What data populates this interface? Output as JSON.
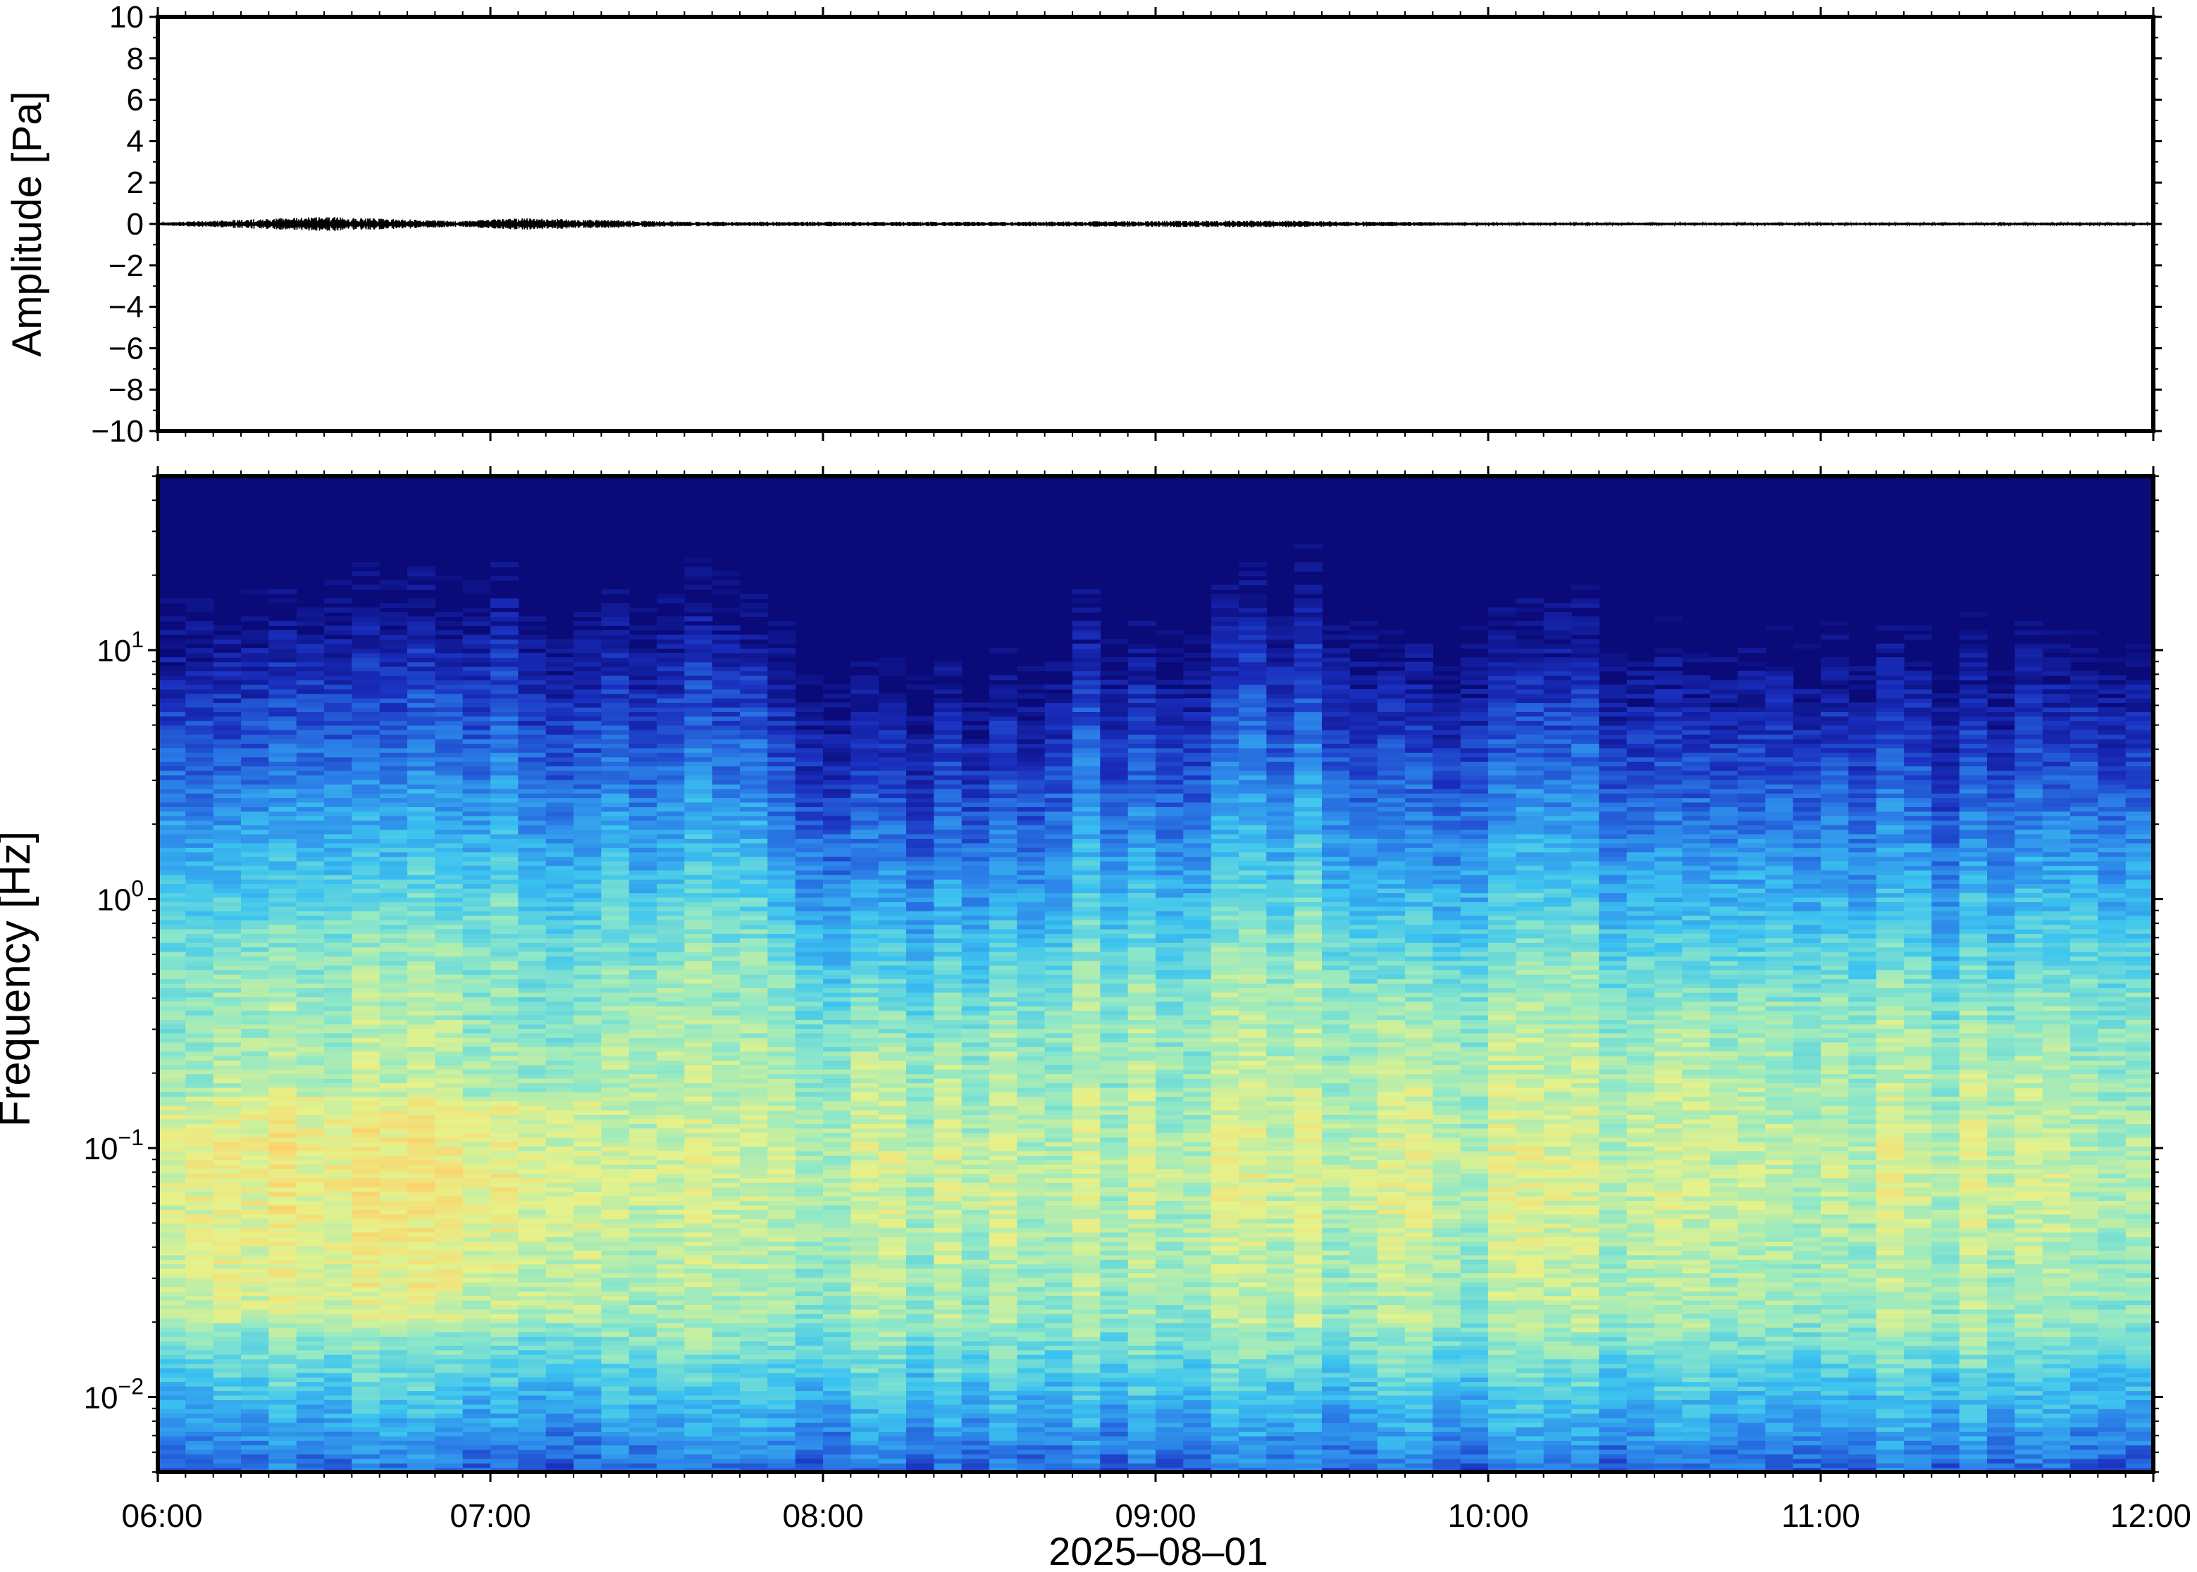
{
  "chart_data": [
    {
      "type": "line",
      "ylabel": "Amplitude [Pa]",
      "ylim": [
        -10,
        10
      ],
      "y_ticks": [
        "10",
        "8",
        "6",
        "4",
        "2",
        "0",
        "−2",
        "−4",
        "−6",
        "−8",
        "−10"
      ],
      "y_tick_values": [
        10,
        8,
        6,
        4,
        2,
        0,
        -2,
        -4,
        -6,
        -8,
        -10
      ],
      "x_range": [
        "06:00",
        "12:00"
      ],
      "series": [
        {
          "hours": [
            6.0,
            6.5,
            6.9,
            7.1,
            7.6,
            8.6,
            9.3,
            10.0,
            11.0,
            12.0
          ],
          "values": [
            0.05,
            0.25,
            0.1,
            0.2,
            0.08,
            0.08,
            0.12,
            0.05,
            0.05,
            0.05
          ]
        }
      ],
      "color": "#000000"
    },
    {
      "type": "heatmap",
      "ylabel": "Frequency [Hz]",
      "yscale": "log",
      "ylim": [
        0.005,
        50
      ],
      "y_tick_base": [
        "10",
        "10",
        "10",
        "10"
      ],
      "y_tick_exp": [
        "1",
        "0",
        "−1",
        "−2"
      ],
      "y_tick_values": [
        10,
        1,
        0.1,
        0.01
      ],
      "x_ticks": [
        "06:00",
        "07:00",
        "08:00",
        "09:00",
        "10:00",
        "11:00",
        "12:00"
      ],
      "x_tick_hours": [
        6,
        7,
        8,
        9,
        10,
        11,
        12
      ],
      "xlabel": "2025–08–01",
      "colormap": [
        "#0a0a78",
        "#1a2fbf",
        "#2b7fe8",
        "#3cc4f0",
        "#8ee8c8",
        "#e6f28a",
        "#ffcc66"
      ],
      "activity_hours": [
        6.0,
        6.25,
        6.5,
        6.75,
        7.0,
        7.25,
        7.5,
        7.75,
        8.0,
        8.25,
        8.5,
        8.75,
        9.0,
        9.25,
        9.5,
        9.75,
        10.0,
        10.25,
        10.5,
        10.75,
        11.0,
        11.25,
        11.5,
        11.75,
        12.0
      ],
      "activity_cutoff_hz": [
        12,
        9,
        14,
        10,
        17,
        12,
        9,
        13,
        5,
        4,
        4,
        9,
        8,
        11,
        12,
        5,
        8,
        9,
        5,
        6,
        7,
        6,
        5,
        8,
        9
      ]
    }
  ]
}
